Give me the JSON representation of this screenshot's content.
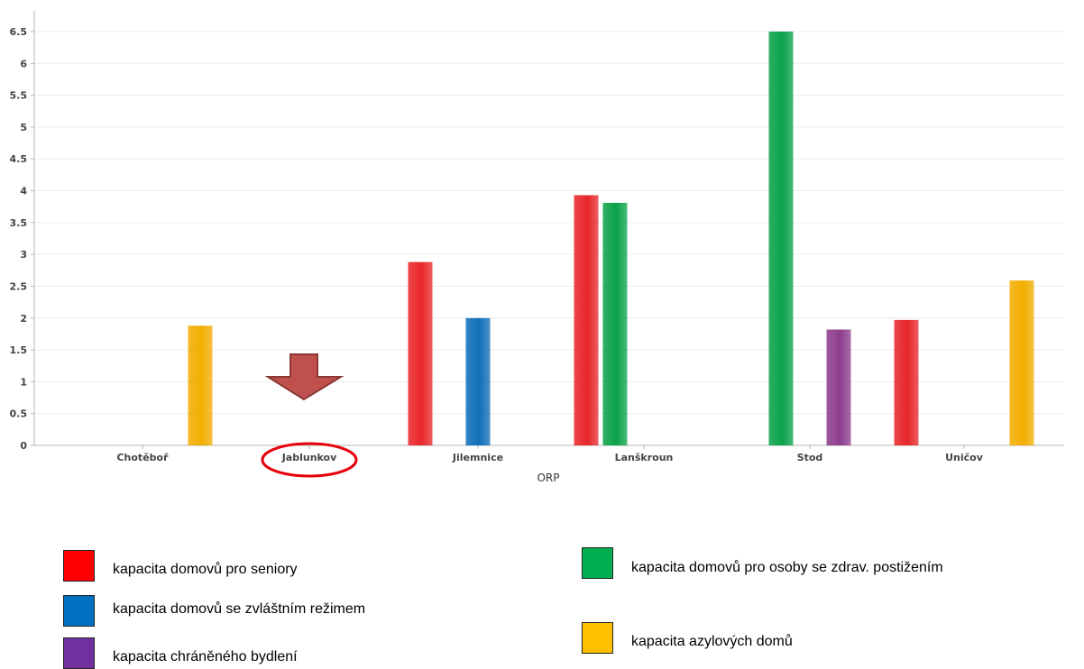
{
  "chart_data": {
    "type": "bar",
    "xlabel": "ORP",
    "ylabel": "",
    "ylim": [
      0,
      6.7
    ],
    "yticks": [
      "0",
      "0.5",
      "1",
      "1.5",
      "2",
      "2.5",
      "3",
      "3.5",
      "4",
      "4.5",
      "5",
      "5.5",
      "6",
      "6.5"
    ],
    "grid": true,
    "categories": [
      "Chotěboř",
      "Jablunkov",
      "Jilemnice",
      "Lanškroun",
      "Stod",
      "Uničov"
    ],
    "series": [
      {
        "name": "kapacita domovů pro seniory",
        "color": "#e8262a",
        "values": [
          0,
          0,
          2.88,
          3.93,
          0,
          1.97
        ]
      },
      {
        "name": "kapacita domovů pro osoby se zdrav. postižením",
        "color": "#0ba24a",
        "values": [
          0,
          0,
          0,
          3.81,
          6.5,
          0
        ]
      },
      {
        "name": "kapacita domovů se zvláštním režimem",
        "color": "#0f6eb8",
        "values": [
          0,
          0,
          2.0,
          0,
          0,
          0
        ]
      },
      {
        "name": "kapacita chráněného bydlení",
        "color": "#8d3c8e",
        "values": [
          0,
          0,
          0,
          0,
          1.82,
          0
        ]
      },
      {
        "name": "kapacita azylových domů",
        "color": "#f2ad00",
        "values": [
          1.88,
          0,
          0,
          0,
          0,
          2.59
        ]
      }
    ],
    "annotations": {
      "highlighted_category": "Jablunkov",
      "arrow_color": "#c0504d",
      "circle_color": "#e8000b"
    }
  },
  "legend": {
    "items": [
      {
        "label": "kapacita domovů pro seniory",
        "color": "#ff0000"
      },
      {
        "label": "kapacita domovů se zvláštním režimem",
        "color": "#0070c0"
      },
      {
        "label": "kapacita chráněného bydlení",
        "color": "#7030a0"
      },
      {
        "label": "kapacita domovů pro osoby se zdrav. postižením",
        "color": "#00b050"
      },
      {
        "label": "kapacita azylových domů",
        "color": "#ffc000"
      }
    ]
  }
}
